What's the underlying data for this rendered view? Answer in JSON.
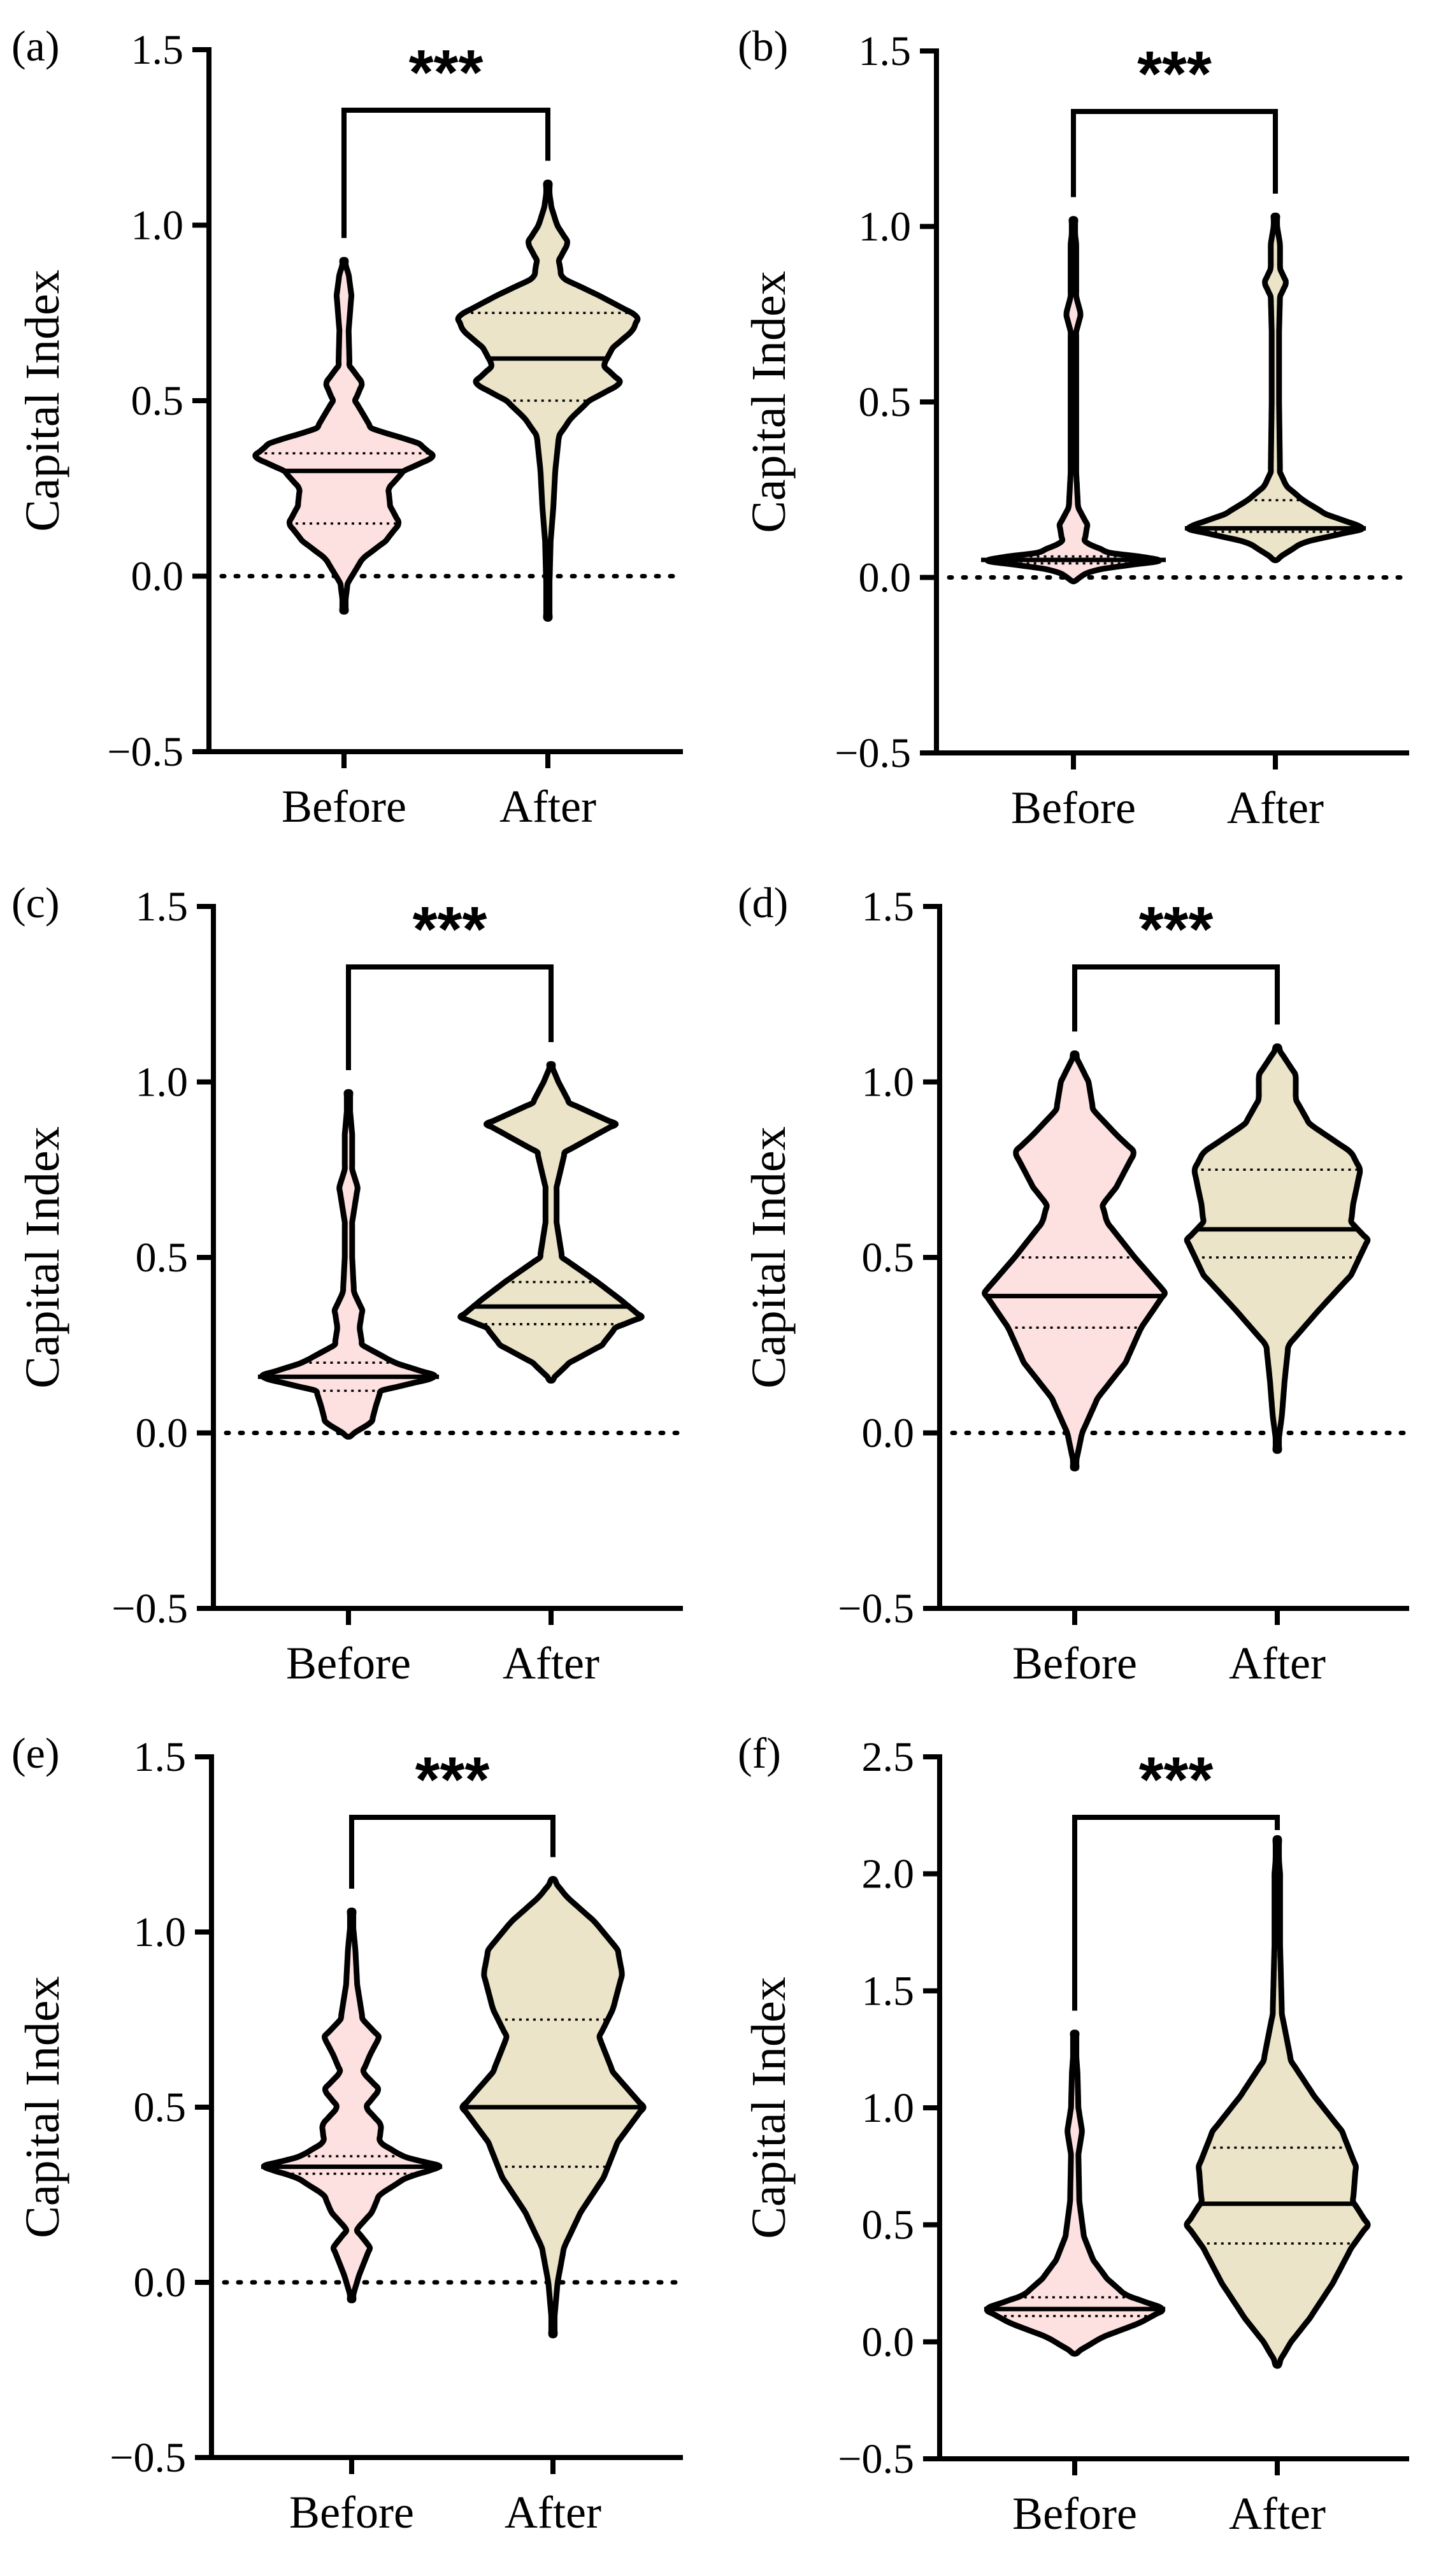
{
  "figure": {
    "description": "Violin plots of Capital Index before and after"
  },
  "colors": {
    "before": "#fde0e0",
    "after": "#ece4c8",
    "axis": "#000000"
  },
  "chart_data": [
    {
      "type": "violin",
      "panel_label": "(a)",
      "ylabel": "Capital Index",
      "categories": [
        "Before",
        "After"
      ],
      "ylim": [
        -0.5,
        1.5
      ],
      "yticks": [
        -0.5,
        0.0,
        0.5,
        1.0,
        1.5
      ],
      "ytick_labels": [
        "−0.5",
        "0.0",
        "0.5",
        "1.0",
        "1.5"
      ],
      "zero_line": 0,
      "significance": "***",
      "series": [
        {
          "name": "Before",
          "color": "#fde0e0",
          "median": 0.3,
          "q1": 0.15,
          "q3": 0.35,
          "profile": [
            [
              -0.1,
              0.0
            ],
            [
              -0.02,
              0.04
            ],
            [
              0.05,
              0.2
            ],
            [
              0.1,
              0.45
            ],
            [
              0.15,
              0.6
            ],
            [
              0.2,
              0.5
            ],
            [
              0.25,
              0.48
            ],
            [
              0.3,
              0.65
            ],
            [
              0.34,
              0.98
            ],
            [
              0.38,
              0.8
            ],
            [
              0.42,
              0.3
            ],
            [
              0.5,
              0.12
            ],
            [
              0.55,
              0.2
            ],
            [
              0.6,
              0.06
            ],
            [
              0.7,
              0.05
            ],
            [
              0.8,
              0.08
            ],
            [
              0.86,
              0.05
            ],
            [
              0.9,
              0.0
            ]
          ]
        },
        {
          "name": "After",
          "color": "#ece4c8",
          "median": 0.62,
          "q1": 0.5,
          "q3": 0.75,
          "profile": [
            [
              -0.12,
              0.0
            ],
            [
              0.0,
              0.02
            ],
            [
              0.1,
              0.03
            ],
            [
              0.2,
              0.06
            ],
            [
              0.3,
              0.08
            ],
            [
              0.4,
              0.12
            ],
            [
              0.45,
              0.25
            ],
            [
              0.5,
              0.45
            ],
            [
              0.55,
              0.8
            ],
            [
              0.6,
              0.6
            ],
            [
              0.65,
              0.7
            ],
            [
              0.7,
              0.92
            ],
            [
              0.74,
              0.98
            ],
            [
              0.8,
              0.55
            ],
            [
              0.85,
              0.15
            ],
            [
              0.9,
              0.12
            ],
            [
              0.95,
              0.22
            ],
            [
              1.0,
              0.1
            ],
            [
              1.05,
              0.04
            ],
            [
              1.12,
              0.0
            ]
          ]
        }
      ]
    },
    {
      "type": "violin",
      "panel_label": "(b)",
      "ylabel": "Capital Index",
      "categories": [
        "Before",
        "After"
      ],
      "ylim": [
        -0.5,
        1.5
      ],
      "yticks": [
        -0.5,
        0.0,
        0.5,
        1.0,
        1.5
      ],
      "ytick_labels": [
        "−0.5",
        "0.0",
        "0.5",
        "1.0",
        "1.5"
      ],
      "zero_line": 0,
      "significance": "***",
      "series": [
        {
          "name": "Before",
          "color": "#fde0e0",
          "median": 0.05,
          "q1": 0.04,
          "q3": 0.06,
          "profile": [
            [
              -0.01,
              0.0
            ],
            [
              0.02,
              0.2
            ],
            [
              0.05,
              1.0
            ],
            [
              0.07,
              0.4
            ],
            [
              0.1,
              0.12
            ],
            [
              0.15,
              0.15
            ],
            [
              0.2,
              0.05
            ],
            [
              0.3,
              0.03
            ],
            [
              0.5,
              0.03
            ],
            [
              0.7,
              0.03
            ],
            [
              0.75,
              0.08
            ],
            [
              0.8,
              0.03
            ],
            [
              0.95,
              0.03
            ],
            [
              1.02,
              0.0
            ]
          ]
        },
        {
          "name": "After",
          "color": "#ece4c8",
          "median": 0.14,
          "q1": 0.13,
          "q3": 0.22,
          "profile": [
            [
              0.05,
              0.0
            ],
            [
              0.1,
              0.3
            ],
            [
              0.14,
              0.98
            ],
            [
              0.18,
              0.55
            ],
            [
              0.22,
              0.3
            ],
            [
              0.26,
              0.12
            ],
            [
              0.3,
              0.05
            ],
            [
              0.5,
              0.04
            ],
            [
              0.7,
              0.04
            ],
            [
              0.8,
              0.05
            ],
            [
              0.84,
              0.12
            ],
            [
              0.88,
              0.05
            ],
            [
              0.95,
              0.05
            ],
            [
              1.03,
              0.0
            ]
          ]
        }
      ]
    },
    {
      "type": "violin",
      "panel_label": "(c)",
      "ylabel": "Capital Index",
      "categories": [
        "Before",
        "After"
      ],
      "ylim": [
        -0.5,
        1.5
      ],
      "yticks": [
        -0.5,
        0.0,
        0.5,
        1.0,
        1.5
      ],
      "ytick_labels": [
        "−0.5",
        "0.0",
        "0.5",
        "1.0",
        "1.5"
      ],
      "zero_line": 0,
      "significance": "***",
      "series": [
        {
          "name": "Before",
          "color": "#fde0e0",
          "median": 0.16,
          "q1": 0.12,
          "q3": 0.2,
          "profile": [
            [
              -0.01,
              0.0
            ],
            [
              0.03,
              0.25
            ],
            [
              0.08,
              0.3
            ],
            [
              0.12,
              0.35
            ],
            [
              0.16,
              0.98
            ],
            [
              0.2,
              0.5
            ],
            [
              0.25,
              0.15
            ],
            [
              0.3,
              0.12
            ],
            [
              0.35,
              0.15
            ],
            [
              0.4,
              0.06
            ],
            [
              0.5,
              0.04
            ],
            [
              0.6,
              0.04
            ],
            [
              0.7,
              0.1
            ],
            [
              0.75,
              0.04
            ],
            [
              0.85,
              0.04
            ],
            [
              0.97,
              0.0
            ]
          ]
        },
        {
          "name": "After",
          "color": "#ece4c8",
          "median": 0.36,
          "q1": 0.31,
          "q3": 0.43,
          "profile": [
            [
              0.15,
              0.0
            ],
            [
              0.2,
              0.2
            ],
            [
              0.25,
              0.55
            ],
            [
              0.3,
              0.7
            ],
            [
              0.33,
              0.98
            ],
            [
              0.38,
              0.75
            ],
            [
              0.43,
              0.5
            ],
            [
              0.5,
              0.12
            ],
            [
              0.6,
              0.06
            ],
            [
              0.7,
              0.06
            ],
            [
              0.8,
              0.15
            ],
            [
              0.88,
              0.7
            ],
            [
              0.94,
              0.2
            ],
            [
              1.0,
              0.08
            ],
            [
              1.05,
              0.0
            ]
          ]
        }
      ]
    },
    {
      "type": "violin",
      "panel_label": "(d)",
      "ylabel": "Capital Index",
      "categories": [
        "Before",
        "After"
      ],
      "ylim": [
        -0.5,
        1.5
      ],
      "yticks": [
        -0.5,
        0.0,
        0.5,
        1.0,
        1.5
      ],
      "ytick_labels": [
        "−0.5",
        "0.0",
        "0.5",
        "1.0",
        "1.5"
      ],
      "zero_line": 0,
      "significance": "***",
      "series": [
        {
          "name": "Before",
          "color": "#fde0e0",
          "median": 0.39,
          "q1": 0.3,
          "q3": 0.5,
          "profile": [
            [
              -0.1,
              0.0
            ],
            [
              0.0,
              0.08
            ],
            [
              0.1,
              0.25
            ],
            [
              0.2,
              0.55
            ],
            [
              0.3,
              0.72
            ],
            [
              0.4,
              0.98
            ],
            [
              0.5,
              0.65
            ],
            [
              0.6,
              0.35
            ],
            [
              0.65,
              0.3
            ],
            [
              0.7,
              0.45
            ],
            [
              0.8,
              0.65
            ],
            [
              0.85,
              0.45
            ],
            [
              0.92,
              0.2
            ],
            [
              1.0,
              0.15
            ],
            [
              1.08,
              0.0
            ]
          ]
        },
        {
          "name": "After",
          "color": "#ece4c8",
          "median": 0.58,
          "q1": 0.5,
          "q3": 0.75,
          "profile": [
            [
              -0.05,
              0.0
            ],
            [
              0.05,
              0.05
            ],
            [
              0.15,
              0.08
            ],
            [
              0.25,
              0.12
            ],
            [
              0.35,
              0.45
            ],
            [
              0.45,
              0.8
            ],
            [
              0.55,
              0.98
            ],
            [
              0.6,
              0.8
            ],
            [
              0.65,
              0.82
            ],
            [
              0.75,
              0.9
            ],
            [
              0.8,
              0.8
            ],
            [
              0.88,
              0.35
            ],
            [
              0.95,
              0.2
            ],
            [
              1.02,
              0.2
            ],
            [
              1.1,
              0.0
            ]
          ]
        }
      ]
    },
    {
      "type": "violin",
      "panel_label": "(e)",
      "ylabel": "Capital Index",
      "categories": [
        "Before",
        "After"
      ],
      "ylim": [
        -0.5,
        1.5
      ],
      "yticks": [
        -0.5,
        0.0,
        0.5,
        1.0,
        1.5
      ],
      "ytick_labels": [
        "−0.5",
        "0.0",
        "0.5",
        "1.0",
        "1.5"
      ],
      "zero_line": 0,
      "significance": "***",
      "series": [
        {
          "name": "Before",
          "color": "#fde0e0",
          "median": 0.33,
          "q1": 0.31,
          "q3": 0.36,
          "profile": [
            [
              -0.05,
              0.0
            ],
            [
              0.02,
              0.08
            ],
            [
              0.1,
              0.2
            ],
            [
              0.15,
              0.05
            ],
            [
              0.2,
              0.22
            ],
            [
              0.25,
              0.3
            ],
            [
              0.3,
              0.6
            ],
            [
              0.33,
              0.98
            ],
            [
              0.36,
              0.55
            ],
            [
              0.4,
              0.3
            ],
            [
              0.45,
              0.32
            ],
            [
              0.5,
              0.15
            ],
            [
              0.55,
              0.3
            ],
            [
              0.6,
              0.12
            ],
            [
              0.65,
              0.2
            ],
            [
              0.7,
              0.3
            ],
            [
              0.75,
              0.12
            ],
            [
              0.85,
              0.06
            ],
            [
              0.95,
              0.04
            ],
            [
              1.06,
              0.0
            ]
          ]
        },
        {
          "name": "After",
          "color": "#ece4c8",
          "median": 0.5,
          "q1": 0.33,
          "q3": 0.75,
          "profile": [
            [
              -0.15,
              0.0
            ],
            [
              0.0,
              0.05
            ],
            [
              0.1,
              0.12
            ],
            [
              0.2,
              0.3
            ],
            [
              0.3,
              0.55
            ],
            [
              0.4,
              0.7
            ],
            [
              0.5,
              0.98
            ],
            [
              0.6,
              0.65
            ],
            [
              0.7,
              0.5
            ],
            [
              0.78,
              0.65
            ],
            [
              0.88,
              0.75
            ],
            [
              0.95,
              0.7
            ],
            [
              1.03,
              0.45
            ],
            [
              1.1,
              0.15
            ],
            [
              1.15,
              0.0
            ]
          ]
        }
      ]
    },
    {
      "type": "violin",
      "panel_label": "(f)",
      "ylabel": "Capital Index",
      "categories": [
        "Before",
        "After"
      ],
      "ylim": [
        -0.5,
        2.5
      ],
      "yticks": [
        -0.5,
        0.0,
        0.5,
        1.0,
        1.5,
        2.0,
        2.5
      ],
      "ytick_labels": [
        "−0.5",
        "0.0",
        "0.5",
        "1.0",
        "1.5",
        "2.0",
        "2.5"
      ],
      "zero_line": null,
      "significance": "***",
      "series": [
        {
          "name": "Before",
          "color": "#fde0e0",
          "median": 0.14,
          "q1": 0.11,
          "q3": 0.19,
          "profile": [
            [
              -0.05,
              0.0
            ],
            [
              0.02,
              0.3
            ],
            [
              0.08,
              0.7
            ],
            [
              0.14,
              0.98
            ],
            [
              0.2,
              0.55
            ],
            [
              0.27,
              0.35
            ],
            [
              0.35,
              0.2
            ],
            [
              0.45,
              0.1
            ],
            [
              0.6,
              0.05
            ],
            [
              0.8,
              0.04
            ],
            [
              0.9,
              0.08
            ],
            [
              1.0,
              0.04
            ],
            [
              1.15,
              0.03
            ],
            [
              1.32,
              0.0
            ]
          ]
        },
        {
          "name": "After",
          "color": "#ece4c8",
          "median": 0.59,
          "q1": 0.42,
          "q3": 0.83,
          "profile": [
            [
              -0.1,
              0.0
            ],
            [
              0.0,
              0.15
            ],
            [
              0.1,
              0.35
            ],
            [
              0.25,
              0.6
            ],
            [
              0.4,
              0.8
            ],
            [
              0.5,
              0.98
            ],
            [
              0.6,
              0.82
            ],
            [
              0.75,
              0.85
            ],
            [
              0.9,
              0.7
            ],
            [
              1.05,
              0.4
            ],
            [
              1.2,
              0.15
            ],
            [
              1.4,
              0.05
            ],
            [
              1.7,
              0.03
            ],
            [
              2.0,
              0.03
            ],
            [
              2.15,
              0.0
            ]
          ]
        }
      ]
    }
  ]
}
